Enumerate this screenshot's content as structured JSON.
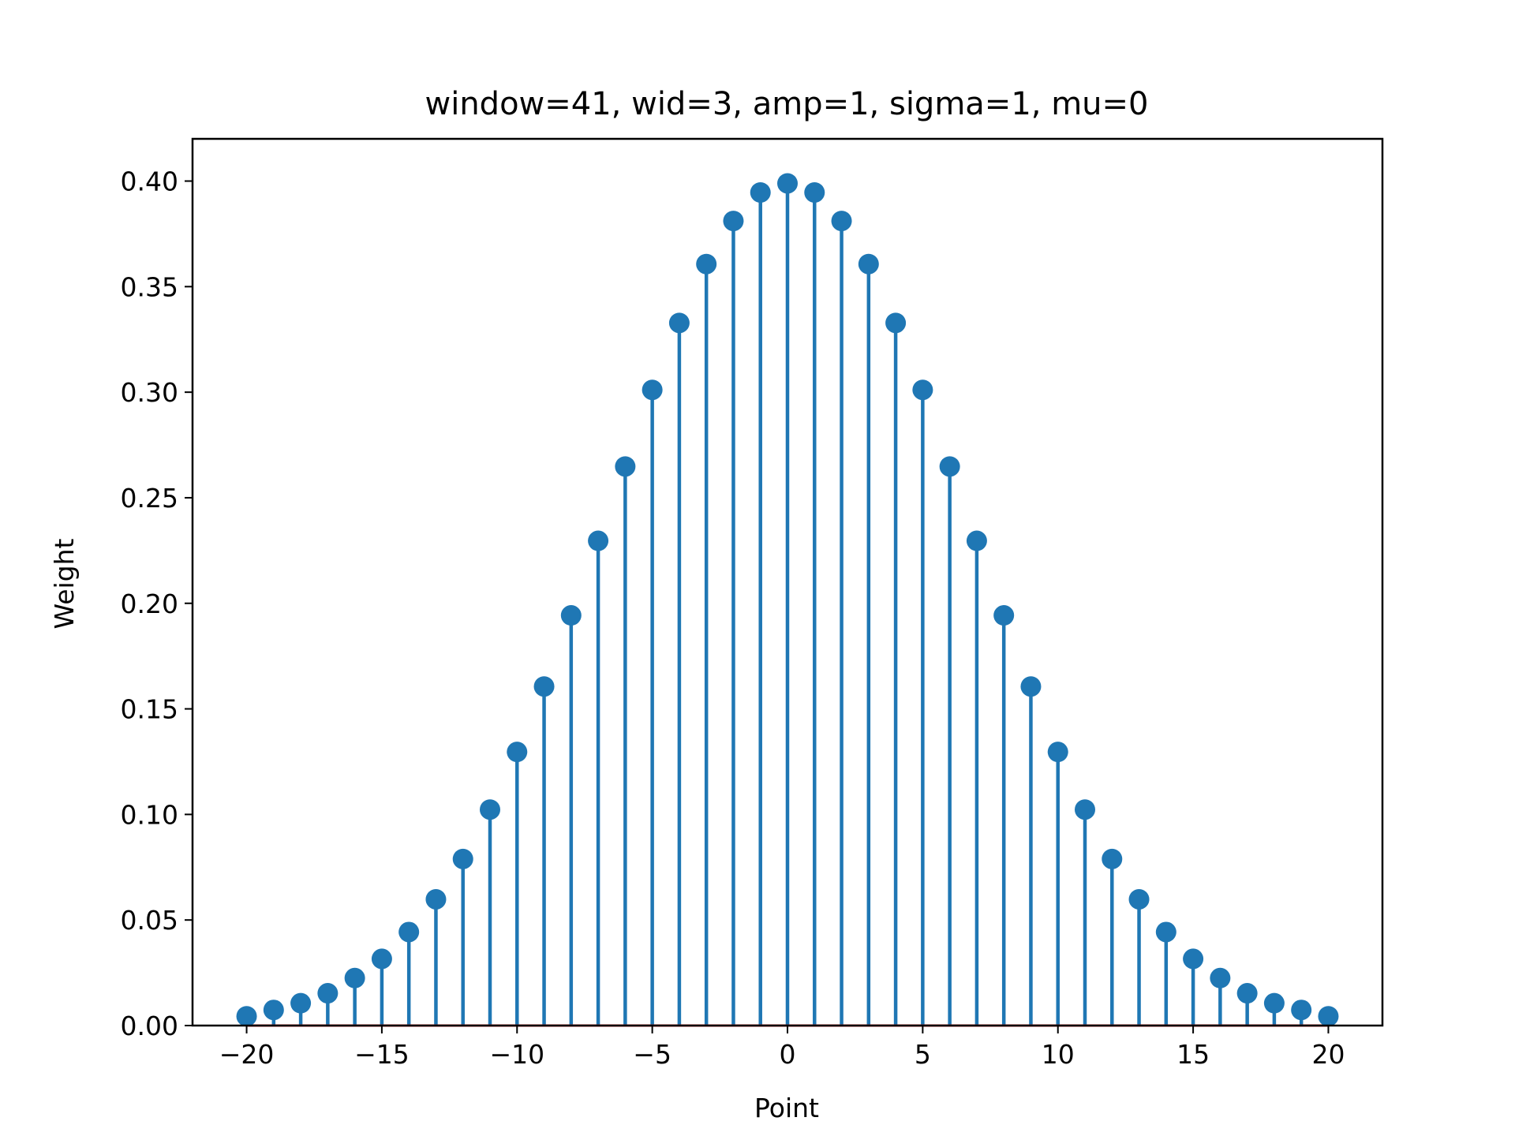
{
  "chart_data": {
    "type": "stem",
    "title": "window=41, wid=3, amp=1, sigma=1, mu=0",
    "xlabel": "Point",
    "ylabel": "Weight",
    "xlim": [
      -22,
      22
    ],
    "ylim": [
      0,
      0.42
    ],
    "x_ticks": [
      -20,
      -15,
      -10,
      -5,
      0,
      5,
      10,
      15,
      20
    ],
    "x_tick_labels": [
      "−20",
      "−15",
      "−10",
      "−5",
      "0",
      "5",
      "10",
      "15",
      "20"
    ],
    "y_ticks": [
      0.0,
      0.05,
      0.1,
      0.15,
      0.2,
      0.25,
      0.3,
      0.35,
      0.4
    ],
    "y_tick_labels": [
      "0.00",
      "0.05",
      "0.10",
      "0.15",
      "0.20",
      "0.25",
      "0.30",
      "0.35",
      "0.40"
    ],
    "grid": false,
    "colors": {
      "stem": "#1f77b4",
      "baseline": "#d62728",
      "axes": "#000000"
    },
    "x": [
      -20,
      -19,
      -18,
      -17,
      -16,
      -15,
      -14,
      -13,
      -12,
      -11,
      -10,
      -9,
      -8,
      -7,
      -6,
      -5,
      -4,
      -3,
      -2,
      -1,
      0,
      1,
      2,
      3,
      4,
      5,
      6,
      7,
      8,
      9,
      10,
      11,
      12,
      13,
      14,
      15,
      16,
      17,
      18,
      19,
      20
    ],
    "values": [
      0.0044,
      0.0074,
      0.0106,
      0.0153,
      0.0225,
      0.0316,
      0.0443,
      0.0598,
      0.0789,
      0.1023,
      0.1296,
      0.1606,
      0.1943,
      0.2296,
      0.2648,
      0.3011,
      0.3328,
      0.3607,
      0.3811,
      0.3946,
      0.3989,
      0.3946,
      0.3811,
      0.3607,
      0.3328,
      0.3011,
      0.2648,
      0.2296,
      0.1943,
      0.1606,
      0.1296,
      0.1023,
      0.0789,
      0.0598,
      0.0443,
      0.0316,
      0.0225,
      0.0153,
      0.0106,
      0.0074,
      0.0044
    ]
  }
}
